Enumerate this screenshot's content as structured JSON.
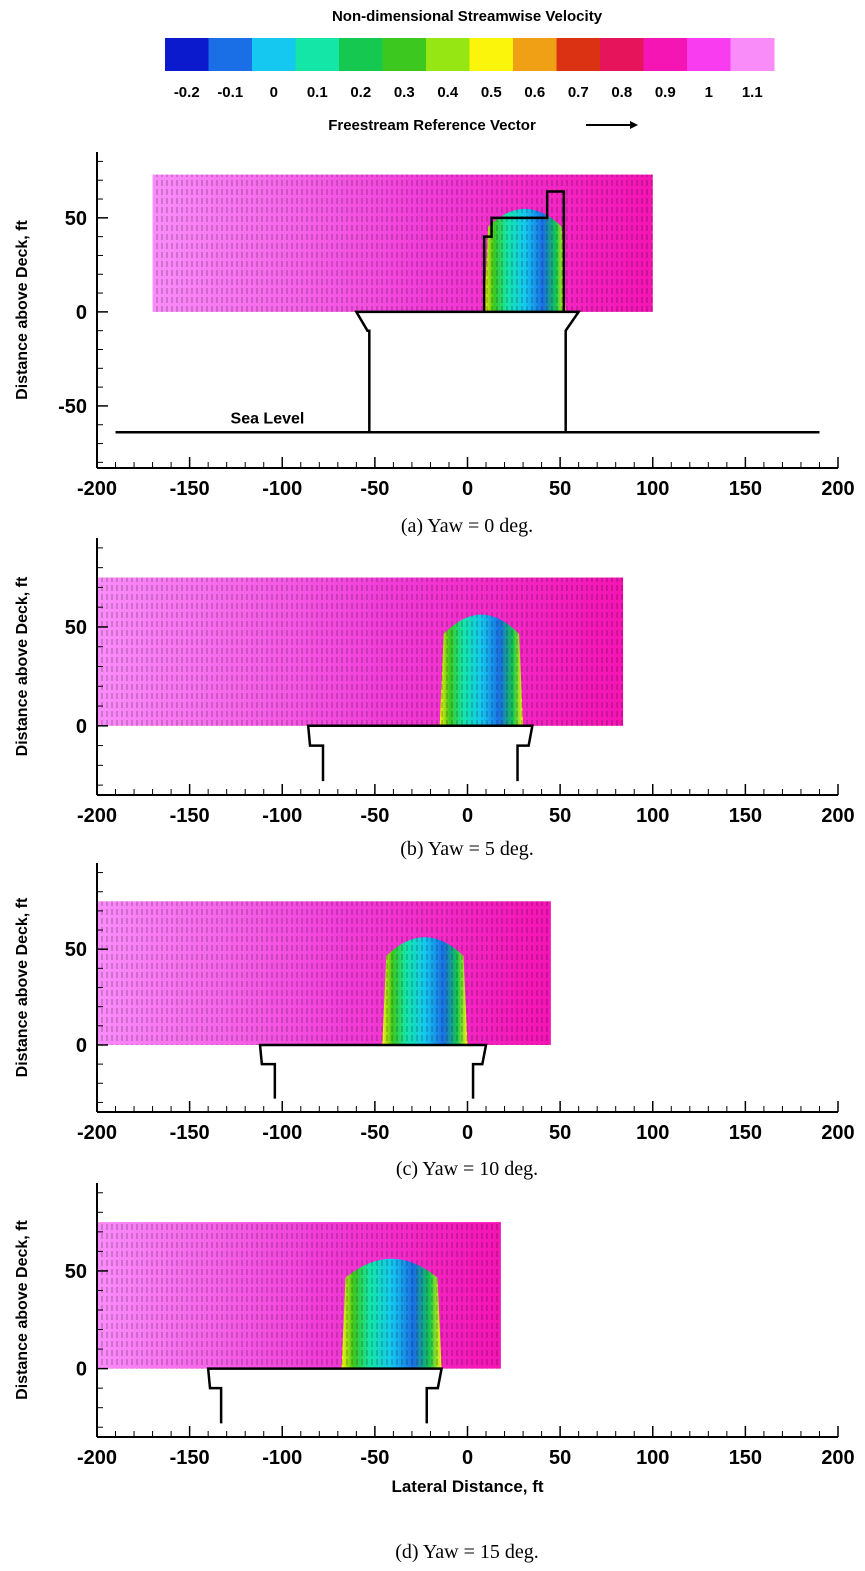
{
  "colorbar": {
    "title": "Non-dimensional Streamwise Velocity",
    "levels": [
      "-0.2",
      "-0.1",
      "0",
      "0.1",
      "0.2",
      "0.3",
      "0.4",
      "0.5",
      "0.6",
      "0.7",
      "0.8",
      "0.9",
      "1",
      "1.1"
    ],
    "colors": [
      "#0a1acc",
      "#1a6ee6",
      "#14c8f0",
      "#14e6a8",
      "#14c850",
      "#3cc81e",
      "#96e614",
      "#faf50a",
      "#f0a014",
      "#dc3214",
      "#e6145a",
      "#f514b4",
      "#fa3cf0",
      "#fa8cfa"
    ],
    "reference_label": "Freestream Reference Vector"
  },
  "shared": {
    "ylabel": "Distance above Deck, ft",
    "xlabel": "Lateral Distance, ft",
    "sea_level_label": "Sea Level"
  },
  "chart_data": [
    {
      "type": "heatmap",
      "caption": "(a)   Yaw = 0 deg.",
      "xlim": [
        -200,
        200
      ],
      "ylim": [
        -83,
        85
      ],
      "xticks": [
        "-200",
        "-150",
        "-100",
        "-50",
        "0",
        "50",
        "100",
        "150",
        "200"
      ],
      "yticks": [
        {
          "v": 50,
          "label": "50"
        },
        {
          "v": 0,
          "label": "0"
        },
        {
          "v": -50,
          "label": "-50"
        }
      ],
      "field_x": [
        -170,
        100
      ],
      "field_top": 73,
      "low_region_x": [
        9,
        53
      ],
      "deck": {
        "x": [
          -60,
          60
        ],
        "step_x": [
          -54,
          53
        ],
        "step_y": -10,
        "leg_x": [
          -53,
          53
        ],
        "leg_bottom": -64
      },
      "sea_level": {
        "y": -64,
        "x": [
          -190,
          190
        ]
      },
      "superstructure": [
        [
          9,
          0
        ],
        [
          9,
          40
        ],
        [
          13,
          40
        ],
        [
          13,
          50
        ],
        [
          43,
          50
        ],
        [
          43,
          64
        ],
        [
          52,
          64
        ],
        [
          52,
          0
        ]
      ]
    },
    {
      "type": "heatmap",
      "caption": "(b)   Yaw = 5 deg.",
      "xlim": [
        -200,
        200
      ],
      "ylim": [
        -35,
        95
      ],
      "xticks": [
        "-200",
        "-150",
        "-100",
        "-50",
        "0",
        "50",
        "100",
        "150",
        "200"
      ],
      "yticks": [
        {
          "v": 50,
          "label": "50"
        },
        {
          "v": 0,
          "label": "0"
        }
      ],
      "field_x": [
        -200,
        84
      ],
      "field_top": 75,
      "low_region_x": [
        -15,
        30
      ],
      "deck": {
        "x": [
          -86,
          35
        ],
        "step_x": [
          -85,
          33
        ],
        "step_y": -10,
        "leg_x": [
          -78,
          27
        ],
        "leg_bottom": -28
      }
    },
    {
      "type": "heatmap",
      "caption": "(c) Yaw = 10 deg.",
      "xlim": [
        -200,
        200
      ],
      "ylim": [
        -35,
        95
      ],
      "xticks": [
        "-200",
        "-150",
        "-100",
        "-50",
        "0",
        "50",
        "100",
        "150",
        "200"
      ],
      "yticks": [
        {
          "v": 50,
          "label": "50"
        },
        {
          "v": 0,
          "label": "0"
        }
      ],
      "field_x": [
        -200,
        45
      ],
      "field_top": 75,
      "low_region_x": [
        -46,
        0
      ],
      "deck": {
        "x": [
          -112,
          10
        ],
        "step_x": [
          -111,
          8
        ],
        "step_y": -10,
        "leg_x": [
          -104,
          3
        ],
        "leg_bottom": -28
      }
    },
    {
      "type": "heatmap",
      "caption": "(d) Yaw = 15 deg.",
      "xlim": [
        -200,
        200
      ],
      "ylim": [
        -35,
        95
      ],
      "xticks": [
        "-200",
        "-150",
        "-100",
        "-50",
        "0",
        "50",
        "100",
        "150",
        "200"
      ],
      "yticks": [
        {
          "v": 50,
          "label": "50"
        },
        {
          "v": 0,
          "label": "0"
        }
      ],
      "field_x": [
        -200,
        18
      ],
      "field_top": 75,
      "low_region_x": [
        -68,
        -14
      ],
      "deck": {
        "x": [
          -140,
          -14
        ],
        "step_x": [
          -139,
          -16
        ],
        "step_y": -10,
        "leg_x": [
          -133,
          -22
        ],
        "leg_bottom": -28
      }
    }
  ]
}
